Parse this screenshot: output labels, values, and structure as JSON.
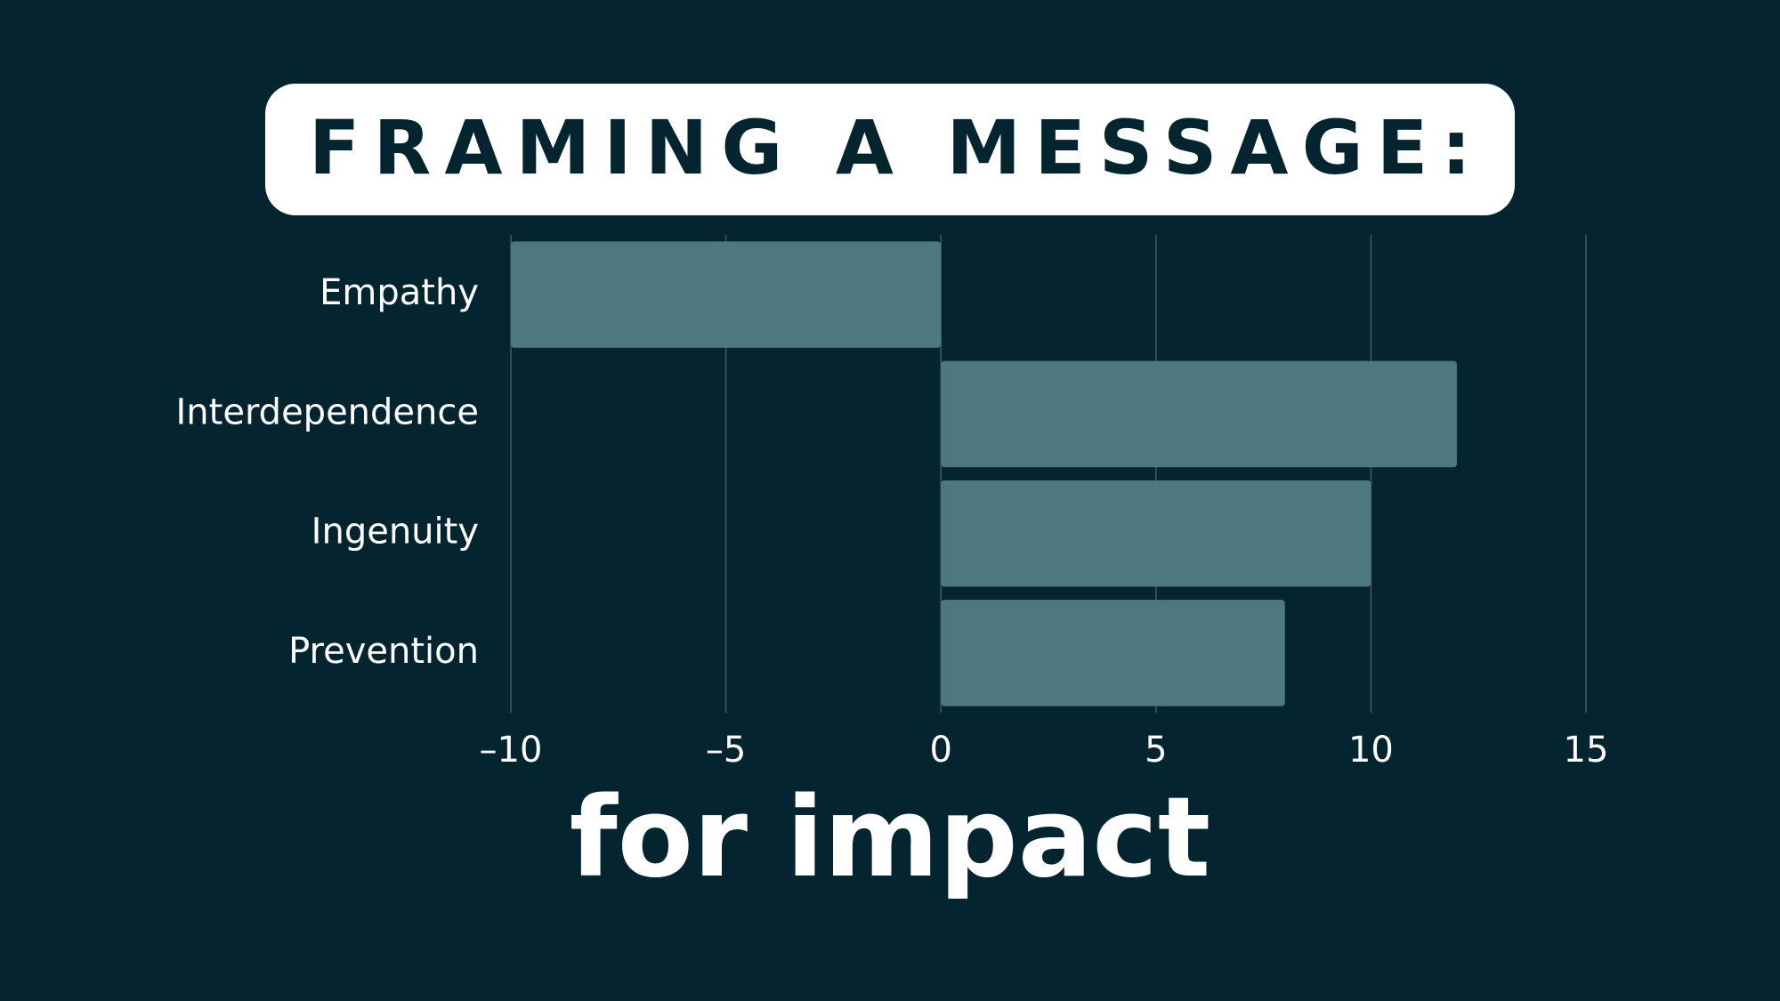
{
  "chart_data": {
    "type": "barh",
    "title": "FRAMING A MESSAGE:",
    "subtitle": "for impact",
    "categories": [
      "Empathy",
      "Interdependence",
      "Ingenuity",
      "Prevention"
    ],
    "values": [
      -10,
      12,
      10,
      8
    ],
    "color": "#4e7880",
    "xlim": [
      -10,
      15
    ],
    "xticks": [
      {
        "value": -10,
        "label": "–10"
      },
      {
        "value": -5,
        "label": "–5"
      },
      0,
      5,
      10,
      15
    ],
    "grid": true
  }
}
